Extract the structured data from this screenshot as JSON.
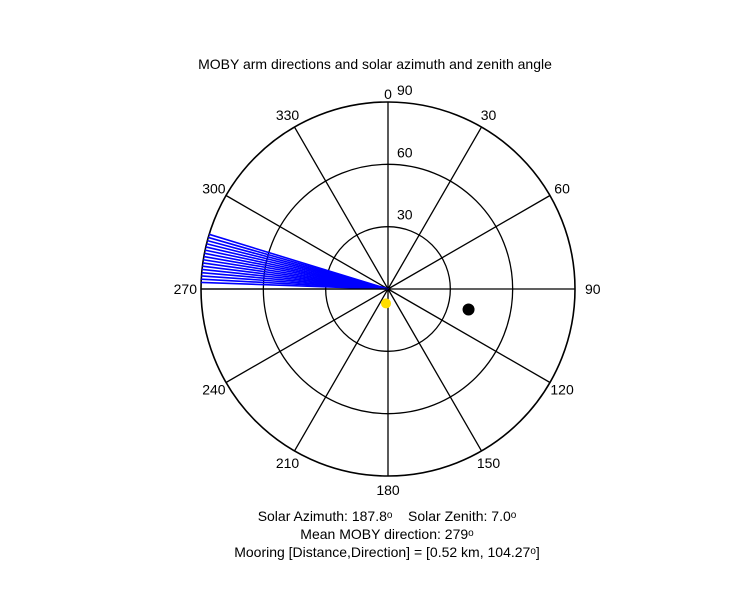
{
  "chart_data": {
    "type": "polar",
    "title": "MOBY arm directions and solar azimuth and zenith angle",
    "angle_orientation": "clockwise from top (0 = north)",
    "angle_ticks": [
      0,
      30,
      60,
      90,
      120,
      150,
      180,
      210,
      240,
      270,
      300,
      330
    ],
    "angle_tick_labels": [
      "0",
      "30",
      "60",
      "90",
      "120",
      "150",
      "180",
      "210",
      "240",
      "270",
      "300",
      "330"
    ],
    "radial_axis": "zenith angle (0 at centre, 90 at rim)",
    "radial_range": [
      0,
      90
    ],
    "radial_ticks": [
      30,
      60,
      90
    ],
    "radial_tick_labels": [
      "30",
      "60",
      "90"
    ],
    "arm_directions": {
      "color": "#0000ff",
      "r": 90,
      "angles": [
        272.0,
        273.0,
        274.0,
        275.0,
        276.0,
        277.0,
        278.0,
        279.0,
        280.0,
        281.0,
        282.0,
        283.0,
        284.0,
        285.0,
        286.0,
        287.0
      ]
    },
    "sun": {
      "azimuth": 187.8,
      "zenith": 7.0,
      "color": "#ffdd00"
    },
    "mooring": {
      "direction": 104.27,
      "distance_km": 0.52,
      "r": 40,
      "color": "#000000"
    },
    "annotations": {
      "solar_azimuth_label": "Solar Azimuth:",
      "solar_azimuth_value": "187.8",
      "solar_zenith_label": "Solar Zenith:",
      "solar_zenith_value": "7.0",
      "mean_direction_label": "Mean MOBY direction:",
      "mean_direction_value": "279",
      "mooring_label": "Mooring [Distance,Direction] =",
      "mooring_distance": "0.52 km",
      "mooring_direction": "104.27",
      "degree_symbol": "o"
    }
  }
}
